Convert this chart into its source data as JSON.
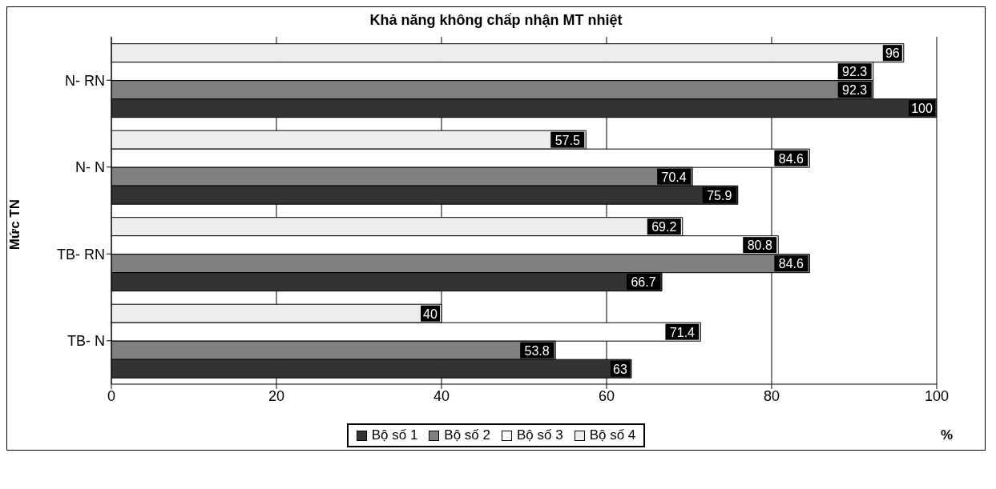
{
  "chart_data": {
    "type": "bar",
    "orientation": "horizontal",
    "title": "Khả năng không chấp nhận MT nhiệt",
    "ylabel": "Mức TN",
    "xlabel": "%",
    "categories": [
      "N- RN",
      "N- N",
      "TB- RN",
      "TB- N"
    ],
    "series": [
      {
        "name": "Bộ số 1",
        "color": "#333333",
        "values": [
          100,
          75.9,
          66.7,
          63
        ]
      },
      {
        "name": "Bộ số 2",
        "color": "#808080",
        "values": [
          92.3,
          70.4,
          84.6,
          53.8
        ]
      },
      {
        "name": "Bộ số 3",
        "color": "#ffffff",
        "values": [
          92.3,
          84.6,
          80.8,
          71.4
        ]
      },
      {
        "name": "Bộ số 4",
        "color": "#eeeeee",
        "values": [
          96,
          57.5,
          69.2,
          40
        ]
      }
    ],
    "xlim": [
      0,
      100
    ],
    "xticks": [
      0,
      20,
      40,
      60,
      80,
      100
    ],
    "grid": "x",
    "legend": "bottom",
    "data_labels": true
  }
}
